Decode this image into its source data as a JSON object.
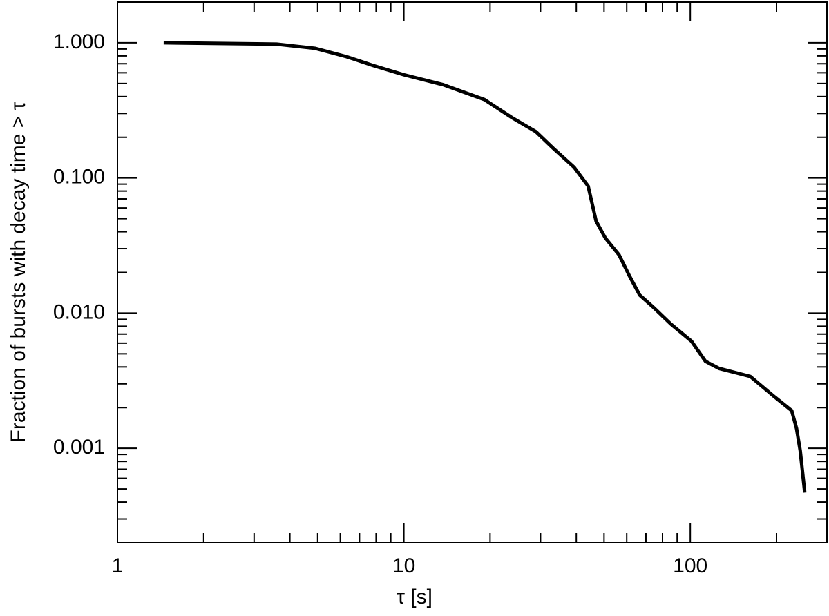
{
  "chart_data": {
    "type": "line",
    "xlabel": "τ [s]",
    "ylabel": "Fraction of bursts with decay time > τ",
    "xscale": "log",
    "yscale": "log",
    "xlim": [
      1,
      300
    ],
    "ylim": [
      0.0002,
      2
    ],
    "xticks": [
      1,
      10,
      100
    ],
    "yticks": [
      {
        "value": 1,
        "label": "1.000"
      },
      {
        "value": 0.1,
        "label": "0.100"
      },
      {
        "value": 0.01,
        "label": "0.010"
      },
      {
        "value": 0.001,
        "label": "0.001"
      }
    ],
    "xminorticks": [
      2,
      3,
      4,
      5,
      6,
      7,
      8,
      9,
      20,
      30,
      40,
      50,
      60,
      70,
      80,
      90,
      200
    ],
    "yminorticks": [
      0.0003,
      0.0004,
      0.0005,
      0.0006,
      0.0007,
      0.0008,
      0.0009,
      0.002,
      0.003,
      0.004,
      0.005,
      0.006,
      0.007,
      0.008,
      0.009,
      0.02,
      0.03,
      0.04,
      0.05,
      0.06,
      0.07,
      0.08,
      0.09,
      0.2,
      0.3,
      0.4,
      0.5,
      0.6,
      0.7,
      0.8,
      0.9
    ],
    "color": "#000000",
    "x": [
      1.45,
      3.6,
      4.9,
      6.3,
      7.8,
      10,
      13.7,
      19.1,
      23.8,
      28.9,
      33.2,
      39.3,
      44,
      46.9,
      50.5,
      56.4,
      61.2,
      66.6,
      74.5,
      85.6,
      101,
      113,
      126,
      162,
      197,
      226,
      235,
      242,
      251
    ],
    "values": [
      1.0,
      0.977,
      0.91,
      0.79,
      0.68,
      0.58,
      0.49,
      0.38,
      0.28,
      0.22,
      0.166,
      0.12,
      0.087,
      0.048,
      0.036,
      0.027,
      0.019,
      0.0136,
      0.011,
      0.0083,
      0.0062,
      0.0044,
      0.0039,
      0.0034,
      0.0024,
      0.0019,
      0.0014,
      0.00096,
      0.00047
    ]
  }
}
